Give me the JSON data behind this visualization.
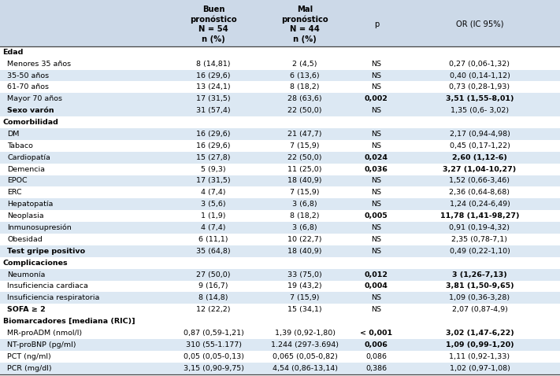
{
  "col_headers": [
    "Buen\npronóstico\nN = 54\nn (%)",
    "Mal\npronóstico\nN = 44\nn (%)",
    "p",
    "OR (IC 95%)"
  ],
  "header_bg": "#ccd9e8",
  "alt_bg": "#dce8f3",
  "white_bg": "#ffffff",
  "rows": [
    {
      "label": "Edad",
      "type": "section",
      "buen": "",
      "mal": "",
      "p": "",
      "or": "",
      "bold_p": false,
      "bold_or": false
    },
    {
      "label": "Menores 35 años",
      "type": "data",
      "buen": "8 (14,81)",
      "mal": "2 (4,5)",
      "p": "NS",
      "or": "0,27 (0,06-1,32)",
      "bold_p": false,
      "bold_or": false
    },
    {
      "label": "35-50 años",
      "type": "data",
      "buen": "16 (29,6)",
      "mal": "6 (13,6)",
      "p": "NS",
      "or": "0,40 (0,14-1,12)",
      "bold_p": false,
      "bold_or": false
    },
    {
      "label": "61-70 años",
      "type": "data",
      "buen": "13 (24,1)",
      "mal": "8 (18,2)",
      "p": "NS",
      "or": "0,73 (0,28-1,93)",
      "bold_p": false,
      "bold_or": false
    },
    {
      "label": "Mayor 70 años",
      "type": "data",
      "buen": "17 (31,5)",
      "mal": "28 (63,6)",
      "p": "0,002",
      "or": "3,51 (1,55-8,01)",
      "bold_p": true,
      "bold_or": true
    },
    {
      "label": "Sexo varón",
      "type": "bold_data",
      "buen": "31 (57,4)",
      "mal": "22 (50,0)",
      "p": "NS",
      "or": "1,35 (0,6- 3,02)",
      "bold_p": false,
      "bold_or": false
    },
    {
      "label": "Comorbilidad",
      "type": "section",
      "buen": "",
      "mal": "",
      "p": "",
      "or": "",
      "bold_p": false,
      "bold_or": false
    },
    {
      "label": "DM",
      "type": "data",
      "buen": "16 (29,6)",
      "mal": "21 (47,7)",
      "p": "NS",
      "or": "2,17 (0,94-4,98)",
      "bold_p": false,
      "bold_or": false
    },
    {
      "label": "Tabaco",
      "type": "data",
      "buen": "16 (29,6)",
      "mal": "7 (15,9)",
      "p": "NS",
      "or": "0,45 (0,17-1,22)",
      "bold_p": false,
      "bold_or": false
    },
    {
      "label": "Cardiopatía",
      "type": "data",
      "buen": "15 (27,8)",
      "mal": "22 (50,0)",
      "p": "0,024",
      "or": "2,60 (1,12-6)",
      "bold_p": true,
      "bold_or": true
    },
    {
      "label": "Demencia",
      "type": "data",
      "buen": "5 (9,3)",
      "mal": "11 (25,0)",
      "p": "0,036",
      "or": "3,27 (1,04-10,27)",
      "bold_p": true,
      "bold_or": true
    },
    {
      "label": "EPOC",
      "type": "data",
      "buen": "17 (31,5)",
      "mal": "18 (40,9)",
      "p": "NS",
      "or": "1,52 (0,66-3,46)",
      "bold_p": false,
      "bold_or": false
    },
    {
      "label": "ERC",
      "type": "data",
      "buen": "4 (7,4)",
      "mal": "7 (15,9)",
      "p": "NS",
      "or": "2,36 (0,64-8,68)",
      "bold_p": false,
      "bold_or": false
    },
    {
      "label": "Hepatopatía",
      "type": "data",
      "buen": "3 (5,6)",
      "mal": "3 (6,8)",
      "p": "NS",
      "or": "1,24 (0,24-6,49)",
      "bold_p": false,
      "bold_or": false
    },
    {
      "label": "Neoplasia",
      "type": "data",
      "buen": "1 (1,9)",
      "mal": "8 (18,2)",
      "p": "0,005",
      "or": "11,78 (1,41-98,27)",
      "bold_p": true,
      "bold_or": true
    },
    {
      "label": "Inmunosupresión",
      "type": "data",
      "buen": "4 (7,4)",
      "mal": "3 (6,8)",
      "p": "NS",
      "or": "0,91 (0,19-4,32)",
      "bold_p": false,
      "bold_or": false
    },
    {
      "label": "Obesidad",
      "type": "data",
      "buen": "6 (11,1)",
      "mal": "10 (22,7)",
      "p": "NS",
      "or": "2,35 (0,78-7,1)",
      "bold_p": false,
      "bold_or": false
    },
    {
      "label": "Test gripe positivo",
      "type": "bold_data",
      "buen": "35 (64,8)",
      "mal": "18 (40,9)",
      "p": "NS",
      "or": "0,49 (0,22-1,10)",
      "bold_p": false,
      "bold_or": false
    },
    {
      "label": "Complicaciones",
      "type": "section",
      "buen": "",
      "mal": "",
      "p": "",
      "or": "",
      "bold_p": false,
      "bold_or": false
    },
    {
      "label": "Neumonía",
      "type": "data",
      "buen": "27 (50,0)",
      "mal": "33 (75,0)",
      "p": "0,012",
      "or": "3 (1,26-7,13)",
      "bold_p": true,
      "bold_or": true
    },
    {
      "label": "Insuficiencia cardiaca",
      "type": "data",
      "buen": "9 (16,7)",
      "mal": "19 (43,2)",
      "p": "0,004",
      "or": "3,81 (1,50-9,65)",
      "bold_p": true,
      "bold_or": true
    },
    {
      "label": "Insuficiencia respiratoria",
      "type": "data",
      "buen": "8 (14,8)",
      "mal": "7 (15,9)",
      "p": "NS",
      "or": "1,09 (0,36-3,28)",
      "bold_p": false,
      "bold_or": false
    },
    {
      "label": "SOFA ≥ 2",
      "type": "bold_data",
      "buen": "12 (22,2)",
      "mal": "15 (34,1)",
      "p": "NS",
      "or": "2,07 (0,87-4,9)",
      "bold_p": false,
      "bold_or": false
    },
    {
      "label": "Biomarcadores [mediana (RIC)]",
      "type": "section",
      "buen": "",
      "mal": "",
      "p": "",
      "or": "",
      "bold_p": false,
      "bold_or": false
    },
    {
      "label": "MR-proADM (nmol/l)",
      "type": "data",
      "buen": "0,87 (0,59-1,21)",
      "mal": "1,39 (0,92-1,80)",
      "p": "< 0,001",
      "or": "3,02 (1,47-6,22)",
      "bold_p": true,
      "bold_or": true
    },
    {
      "label": "NT-proBNP (pg/ml)",
      "type": "data",
      "buen": "310 (55-1.177)",
      "mal": "1.244 (297-3.694)",
      "p": "0,006",
      "or": "1,09 (0,99-1,20)",
      "bold_p": true,
      "bold_or": true
    },
    {
      "label": "PCT (ng/ml)",
      "type": "data",
      "buen": "0,05 (0,05-0,13)",
      "mal": "0,065 (0,05-0,82)",
      "p": "0,086",
      "or": "1,11 (0,92-1,33)",
      "bold_p": false,
      "bold_or": false
    },
    {
      "label": "PCR (mg/dl)",
      "type": "data",
      "buen": "3,15 (0,90-9,75)",
      "mal": "4,54 (0,86-13,14)",
      "p": "0,386",
      "or": "1,02 (0,97-1,08)",
      "bold_p": false,
      "bold_or": false
    }
  ],
  "font_size": 6.8,
  "header_font_size": 7.2,
  "fig_width": 7.11,
  "fig_height": 4.78,
  "dpi": 100
}
